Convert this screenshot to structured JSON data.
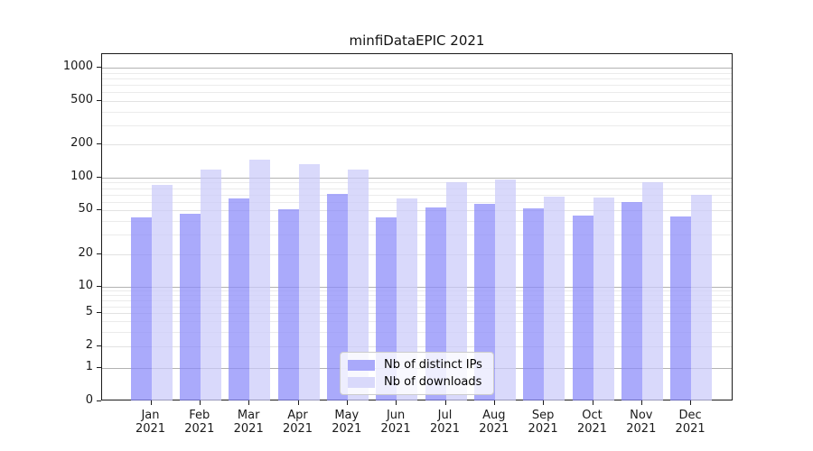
{
  "figure": {
    "title": "minfiDataEPIC 2021"
  },
  "chart_data": {
    "type": "bar",
    "title": "minfiDataEPIC 2021",
    "categories": [
      "Jan 2021",
      "Feb 2021",
      "Mar 2021",
      "Apr 2021",
      "May 2021",
      "Jun 2021",
      "Jul 2021",
      "Aug 2021",
      "Sep 2021",
      "Oct 2021",
      "Nov 2021",
      "Dec 2021"
    ],
    "series": [
      {
        "name": "Nb of distinct IPs",
        "color": "#a9a9fa",
        "fill_rgba": "rgba(137,137,250,0.72)",
        "values": [
          43,
          47,
          64,
          51,
          71,
          43,
          53,
          57,
          52,
          45,
          60,
          44
        ]
      },
      {
        "name": "Nb of downloads",
        "color": "#d9d9fb",
        "fill_rgba": "rgba(203,203,250,0.72)",
        "values": [
          86,
          119,
          146,
          133,
          119,
          64,
          91,
          95,
          67,
          65,
          91,
          69
        ]
      }
    ],
    "xlabel": "",
    "ylabel": "",
    "yscale": "symlog",
    "yticks": [
      0,
      1,
      2,
      5,
      10,
      20,
      50,
      100,
      200,
      500,
      1000
    ],
    "ylim": [
      0,
      1340
    ],
    "grid": "on",
    "legend_position": "lower center"
  },
  "axis_colors": {
    "major_grid": "#b2b2b2",
    "tick_grid": "#e2e2e2",
    "minor_grid": "#ebebeb"
  }
}
